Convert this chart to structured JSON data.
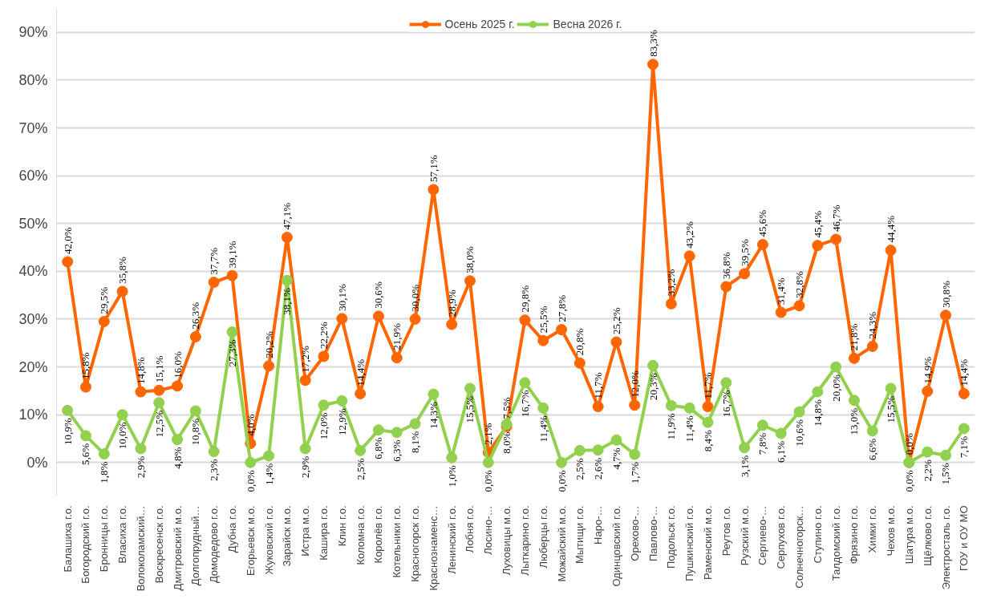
{
  "chart_data": {
    "type": "line",
    "categories": [
      "Балашиха г.о.",
      "Богородский г.о.",
      "Бронницы г.о.",
      "Власиха г.о.",
      "Волоколамский…",
      "Воскресенск г.о.",
      "Дмитровский м.о.",
      "Долгопрудный…",
      "Домодедово г.о.",
      "Дубна г.о.",
      "Егорьевск м.о.",
      "Жуковский г.о.",
      "Зарайск м.о.",
      "Истра м.о.",
      "Кашира г.о.",
      "Клин г.о.",
      "Коломна г.о.",
      "Королёв г.о.",
      "Котельники г.о.",
      "Красногорск г.о.",
      "Краснознаменс…",
      "Ленинский г.о.",
      "Лобня г.о.",
      "Лосино-…",
      "Луховицы м.о.",
      "Лыткарино г.о.",
      "Люберцы г.о.",
      "Можайский м.о.",
      "Мытищи г.о.",
      "Наро-…",
      "Одинцовский г.о.",
      "Орехово-…",
      "Павлово-…",
      "Подольск г.о.",
      "Пушкинский г.о.",
      "Раменский м.о.",
      "Реутов г.о.",
      "Рузский м.о.",
      "Сергиево-…",
      "Серпухов г.о.",
      "Солнечногорск…",
      "Ступино г.о.",
      "Талдомский г.о.",
      "Фрязино г.о.",
      "Химки г.о.",
      "Чехов м.о.",
      "Шатура м.о.",
      "Щёлково г.о.",
      "Электросталь г.о.",
      "ГОУ и ОУ МО"
    ],
    "series": [
      {
        "name": "Осень 2025 г.",
        "color": "#ff6600",
        "values": [
          42.0,
          15.8,
          29.5,
          35.8,
          14.8,
          15.1,
          16.0,
          26.3,
          37.7,
          39.1,
          4.0,
          20.2,
          47.1,
          17.2,
          22.2,
          30.1,
          14.4,
          30.6,
          21.9,
          30.0,
          57.1,
          28.9,
          38.0,
          2.1,
          7.5,
          29.8,
          25.5,
          27.8,
          20.8,
          11.7,
          25.2,
          12.0,
          83.3,
          33.2,
          43.2,
          11.7,
          36.8,
          39.5,
          45.6,
          31.4,
          32.8,
          45.4,
          46.7,
          21.8,
          24.3,
          44.4,
          0.0,
          14.9,
          30.8,
          14.4
        ],
        "value_labels": [
          "42,0%",
          "15,8%",
          "29,5%",
          "35,8%",
          "14,8%",
          "15,1%",
          "16,0%",
          "26,3%",
          "37,7%",
          "39,1%",
          "4,0%",
          "20,2%",
          "47,1%",
          "17,2%",
          "22,2%",
          "30,1%",
          "14,4%",
          "30,6%",
          "21,9%",
          "30,0%",
          "57,1%",
          "28,9%",
          "38,0%",
          "2,1%",
          "7,5%",
          "29,8%",
          "25,5%",
          "27,8%",
          "20,8%",
          "11,7%",
          "25,2%",
          "12,0%",
          "83,3%",
          "33,2%",
          "43,2%",
          "11,7%",
          "36,8%",
          "39,5%",
          "45,6%",
          "31,4%",
          "32,8%",
          "45,4%",
          "46,7%",
          "21,8%",
          "24,3%",
          "44,4%",
          "0,0%",
          "14,9%",
          "30,8%",
          "14,4%"
        ]
      },
      {
        "name": "Весна 2026 г.",
        "color": "#92d050",
        "values": [
          10.9,
          5.6,
          1.8,
          10.0,
          2.9,
          12.5,
          4.8,
          10.8,
          2.3,
          27.3,
          0.0,
          1.4,
          38.1,
          2.9,
          12.0,
          12.9,
          2.5,
          6.8,
          6.3,
          8.1,
          14.3,
          1.0,
          15.5,
          0.0,
          8.0,
          16.7,
          11.4,
          0.0,
          2.5,
          2.6,
          4.7,
          1.7,
          20.3,
          11.9,
          11.4,
          8.4,
          16.7,
          3.1,
          7.8,
          6.1,
          10.6,
          14.8,
          20.0,
          13.0,
          6.6,
          15.5,
          0.0,
          2.2,
          1.5,
          7.1
        ],
        "value_labels": [
          "10,9%",
          "5,6%",
          "1,8%",
          "10,0%",
          "2,9%",
          "12,5%",
          "4,8%",
          "10,8%",
          "2,3%",
          "27,3%",
          "0,0%",
          "1,4%",
          "38,1%",
          "2,9%",
          "12,0%",
          "12,9%",
          "2,5%",
          "6,8%",
          "6,3%",
          "8,1%",
          "14,3%",
          "1,0%",
          "15,5%",
          "0,0%",
          "8,0%",
          "16,7%",
          "11,4%",
          "0,0%",
          "2,5%",
          "2,6%",
          "4,7%",
          "1,7%",
          "20,3%",
          "11,9%",
          "11,4%",
          "8,4%",
          "16,7%",
          "3,1%",
          "7,8%",
          "6,1%",
          "10,6%",
          "14,8%",
          "20,0%",
          "13,0%",
          "6,6%",
          "15,5%",
          "0,0%",
          "2,2%",
          "1,5%",
          "7,1%"
        ]
      }
    ],
    "ylim": [
      -7,
      95
    ],
    "yticks": [
      {
        "value": 0,
        "label": "0%"
      },
      {
        "value": 10,
        "label": "10%"
      },
      {
        "value": 20,
        "label": "20%"
      },
      {
        "value": 30,
        "label": "30%"
      },
      {
        "value": 40,
        "label": "40%"
      },
      {
        "value": 50,
        "label": "50%"
      },
      {
        "value": 60,
        "label": "60%"
      },
      {
        "value": 70,
        "label": "70%"
      },
      {
        "value": 80,
        "label": "80%"
      },
      {
        "value": 90,
        "label": "90%"
      }
    ],
    "grid": "y",
    "legend": "top",
    "marker": "circle",
    "line_style": "solid"
  }
}
